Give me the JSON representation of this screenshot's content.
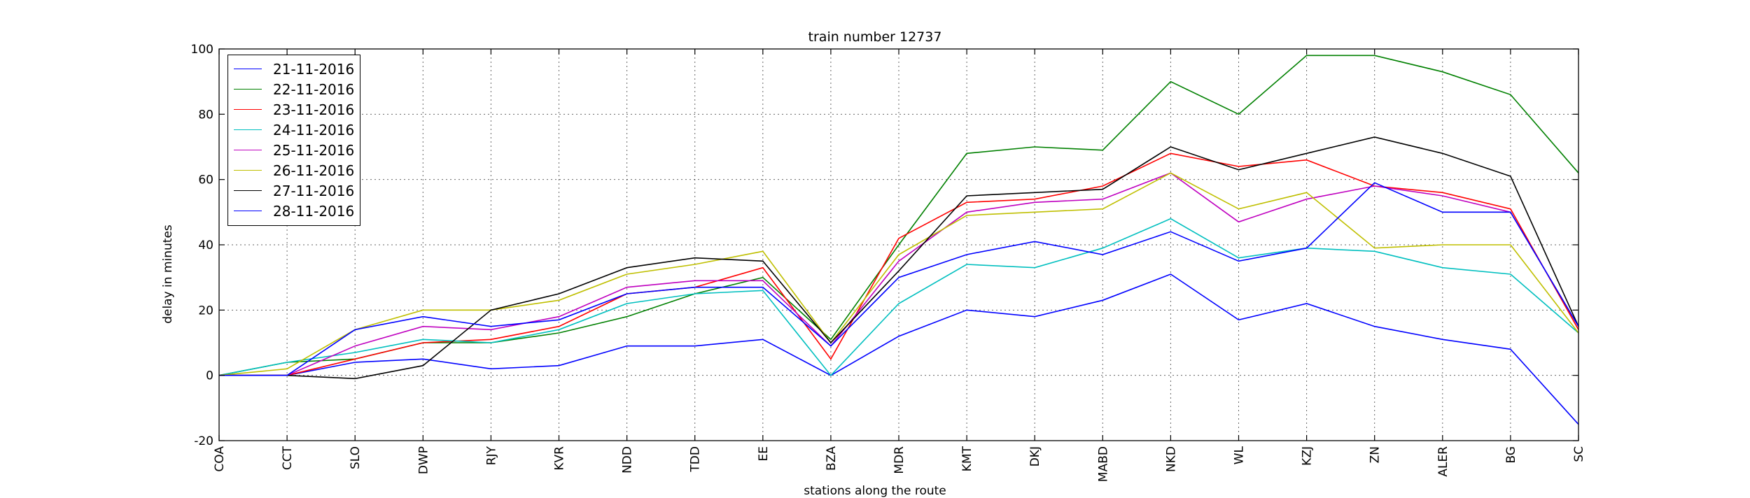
{
  "chart_data": {
    "type": "line",
    "title": "train number 12737",
    "xlabel": "stations along the route",
    "ylabel": "delay in minutes",
    "categories": [
      "COA",
      "CCT",
      "SLO",
      "DWP",
      "RJY",
      "KVR",
      "NDD",
      "TDD",
      "EE",
      "BZA",
      "MDR",
      "KMT",
      "DKJ",
      "MABD",
      "NKD",
      "WL",
      "KZJ",
      "ZN",
      "ALER",
      "BG",
      "SC"
    ],
    "ylim": [
      -20,
      100
    ],
    "yticks": [
      -20,
      0,
      20,
      40,
      60,
      80,
      100
    ],
    "grid": true,
    "legend_position": "top-left",
    "series": [
      {
        "name": "21-11-2016",
        "color": "#0000ff",
        "values": [
          0,
          0,
          4,
          5,
          2,
          3,
          9,
          9,
          11,
          0,
          12,
          20,
          18,
          23,
          31,
          17,
          22,
          15,
          11,
          8,
          -15
        ]
      },
      {
        "name": "22-11-2016",
        "color": "#008000",
        "values": [
          0,
          4,
          5,
          10,
          10,
          13,
          18,
          25,
          30,
          11,
          40,
          68,
          70,
          69,
          90,
          80,
          98,
          98,
          93,
          86,
          62
        ]
      },
      {
        "name": "23-11-2016",
        "color": "#ff0000",
        "values": [
          0,
          0,
          5,
          10,
          11,
          15,
          25,
          27,
          33,
          5,
          42,
          53,
          54,
          58,
          68,
          64,
          66,
          58,
          56,
          51,
          14
        ]
      },
      {
        "name": "24-11-2016",
        "color": "#00bfbf",
        "values": [
          0,
          4,
          7,
          11,
          10,
          14,
          22,
          25,
          26,
          0,
          22,
          34,
          33,
          39,
          48,
          36,
          39,
          38,
          33,
          31,
          13
        ]
      },
      {
        "name": "25-11-2016",
        "color": "#bf00bf",
        "values": [
          0,
          0,
          9,
          15,
          14,
          18,
          27,
          29,
          29,
          9,
          35,
          50,
          53,
          54,
          62,
          47,
          54,
          58,
          55,
          50,
          15
        ]
      },
      {
        "name": "26-11-2016",
        "color": "#bfbf00",
        "values": [
          0,
          2,
          14,
          20,
          20,
          23,
          31,
          34,
          38,
          10,
          37,
          49,
          50,
          51,
          62,
          51,
          56,
          39,
          40,
          40,
          13
        ]
      },
      {
        "name": "27-11-2016",
        "color": "#000000",
        "values": [
          0,
          0,
          -1,
          3,
          20,
          25,
          33,
          36,
          35,
          10,
          32,
          55,
          56,
          57,
          70,
          63,
          68,
          73,
          68,
          61,
          15
        ]
      },
      {
        "name": "28-11-2016",
        "color": "#0000ff",
        "values": [
          0,
          0,
          14,
          18,
          15,
          17,
          25,
          27,
          27,
          9,
          30,
          37,
          41,
          37,
          44,
          35,
          39,
          59,
          50,
          50,
          15
        ]
      }
    ]
  }
}
